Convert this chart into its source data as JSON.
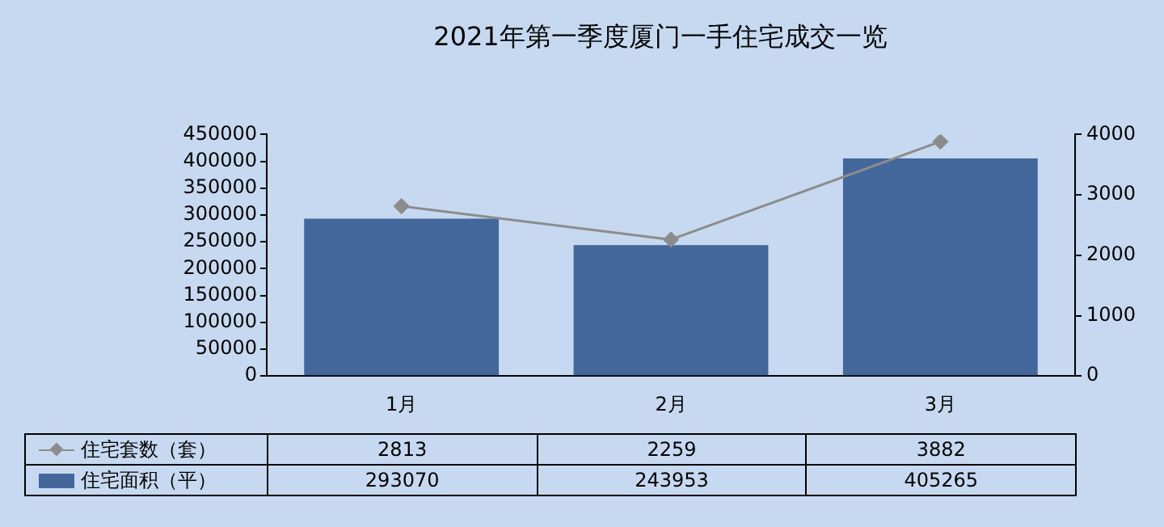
{
  "chart_data": {
    "type": "bar",
    "title": "2021年第一季度厦门一手住宅成交一览",
    "categories": [
      "1月",
      "2月",
      "3月"
    ],
    "series": [
      {
        "name": "住宅套数（套）",
        "type": "line",
        "axis": "y2",
        "color": "#8c8c8c",
        "values": [
          2813,
          2259,
          3882
        ]
      },
      {
        "name": "住宅面积（平）",
        "color": "#44679b",
        "values": [
          293070,
          243953,
          405265
        ]
      }
    ],
    "ylim": [
      0,
      450000
    ],
    "yticks": [
      0,
      50000,
      100000,
      150000,
      200000,
      250000,
      300000,
      350000,
      400000,
      450000
    ],
    "y2lim": [
      0,
      4000
    ],
    "y2ticks": [
      0,
      1000,
      2000,
      3000,
      4000
    ],
    "grid": false,
    "legend": "bottom",
    "marker": "diamond",
    "data_labels": true
  }
}
